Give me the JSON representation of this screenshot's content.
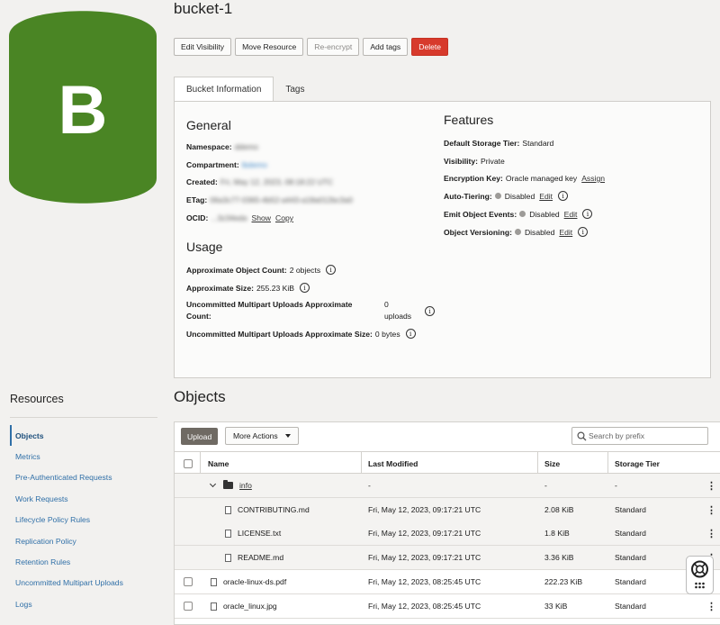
{
  "bucket": {
    "logo_letter": "B",
    "logo_color": "#4a8524",
    "name": "bucket-1"
  },
  "actions": {
    "edit_visibility": "Edit Visibility",
    "move_resource": "Move Resource",
    "re_encrypt": "Re-encrypt",
    "add_tags": "Add tags",
    "delete": "Delete"
  },
  "tabs": [
    "Bucket Information",
    "Tags"
  ],
  "general": {
    "title": "General",
    "namespace_label": "Namespace:",
    "namespace_value": "ddemo",
    "compartment_label": "Compartment:",
    "compartment_value": "lbdemo",
    "created_label": "Created:",
    "created_value": "Fri, May 12, 2023, 08:18:22 UTC",
    "etag_label": "ETag:",
    "etag_value": "06a3c77-0365-4b52-a443-a18a012bc3a0",
    "ocid_label": "OCID:",
    "ocid_value": "...3z34eda",
    "show": "Show",
    "copy": "Copy"
  },
  "usage": {
    "title": "Usage",
    "object_count_label": "Approximate Object Count:",
    "object_count_value": "2 objects",
    "size_label": "Approximate Size:",
    "size_value": "255.23 KiB",
    "multipart_count_label_1": "Uncommitted Multipart Uploads Approximate",
    "multipart_count_label_2": "Count:",
    "multipart_count_value_1": "0",
    "multipart_count_value_2": "uploads",
    "multipart_size_label": "Uncommitted Multipart Uploads Approximate Size:",
    "multipart_size_value": "0 bytes"
  },
  "features": {
    "title": "Features",
    "storage_tier_label": "Default Storage Tier:",
    "storage_tier_value": "Standard",
    "visibility_label": "Visibility:",
    "visibility_value": "Private",
    "encryption_label": "Encryption Key:",
    "encryption_value": "Oracle managed key",
    "assign": "Assign",
    "auto_tiering_label": "Auto-Tiering:",
    "auto_tiering_value": "Disabled",
    "emit_events_label": "Emit Object Events:",
    "emit_events_value": "Disabled",
    "versioning_label": "Object Versioning:",
    "versioning_value": "Disabled",
    "edit": "Edit"
  },
  "resources": {
    "title": "Resources",
    "items": [
      "Objects",
      "Metrics",
      "Pre-Authenticated Requests",
      "Work Requests",
      "Lifecycle Policy Rules",
      "Replication Policy",
      "Retention Rules",
      "Uncommitted Multipart Uploads",
      "Logs"
    ]
  },
  "objects": {
    "title": "Objects",
    "upload": "Upload",
    "more_actions": "More Actions",
    "search_placeholder": "Search by prefix",
    "columns": [
      "Name",
      "Last Modified",
      "Size",
      "Storage Tier"
    ],
    "rows": [
      {
        "name": "info",
        "modified": "-",
        "size": "-",
        "tier": "-"
      },
      {
        "name": "CONTRIBUTING.md",
        "modified": "Fri, May 12, 2023, 09:17:21 UTC",
        "size": "2.08 KiB",
        "tier": "Standard"
      },
      {
        "name": "LICENSE.txt",
        "modified": "Fri, May 12, 2023, 09:17:21 UTC",
        "size": "1.8 KiB",
        "tier": "Standard"
      },
      {
        "name": "README.md",
        "modified": "Fri, May 12, 2023, 09:17:21 UTC",
        "size": "3.36 KiB",
        "tier": "Standard"
      },
      {
        "name": "oracle-linux-ds.pdf",
        "modified": "Fri, May 12, 2023, 08:25:45 UTC",
        "size": "222.23 KiB",
        "tier": "Standard"
      },
      {
        "name": "oracle_linux.jpg",
        "modified": "Fri, May 12, 2023, 08:25:45 UTC",
        "size": "33 KiB",
        "tier": "Standard"
      }
    ]
  }
}
